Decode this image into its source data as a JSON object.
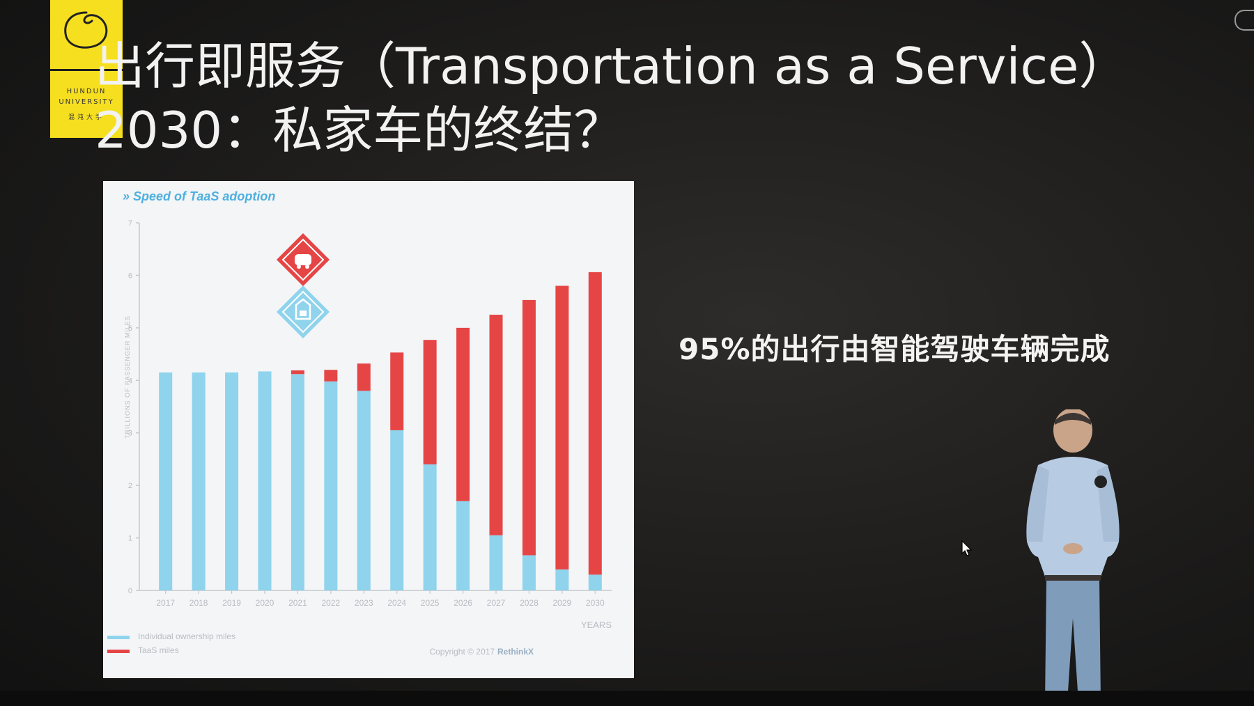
{
  "logo": {
    "line1": "HUNDUN",
    "line2": "UNIVERSITY",
    "cn": "混沌大学"
  },
  "slide": {
    "title_line1": "出行即服务（Transportation as a Service）",
    "title_line2": "2030：私家车的终结？",
    "caption": "95%的出行由智能驾驶车辆完成"
  },
  "chart_data": {
    "type": "bar",
    "stacked": true,
    "title": "» Speed of TaaS adoption",
    "ylabel": "TRILLIONS OF PASSENGER MILES",
    "xlabel": "YEARS",
    "ylim": [
      0,
      7
    ],
    "yticks": [
      "0",
      "1",
      "2",
      "3",
      "4",
      "5",
      "6",
      "7"
    ],
    "categories": [
      "2017",
      "2018",
      "2019",
      "2020",
      "2021",
      "2022",
      "2023",
      "2024",
      "2025",
      "2026",
      "2027",
      "2028",
      "2029",
      "2030"
    ],
    "series": [
      {
        "name": "Individual ownership miles",
        "color": "#8fd3ec",
        "values": [
          4.15,
          4.15,
          4.15,
          4.17,
          4.12,
          3.98,
          3.8,
          3.05,
          2.4,
          1.7,
          1.05,
          0.67,
          0.4,
          0.3
        ]
      },
      {
        "name": "TaaS miles",
        "color": "#e64545",
        "values": [
          0,
          0,
          0,
          0,
          0.07,
          0.22,
          0.52,
          1.48,
          2.37,
          3.3,
          4.2,
          4.86,
          5.4,
          5.76
        ]
      }
    ],
    "copyright": "Copyright © 2017",
    "brand": "RethinkX"
  }
}
